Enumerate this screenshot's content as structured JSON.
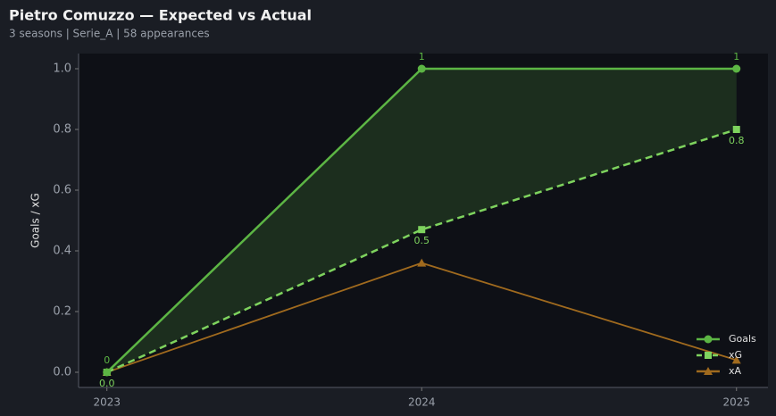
{
  "chart_data": {
    "type": "line",
    "title": "Pietro Comuzzo — Expected vs Actual",
    "subtitle": "3 seasons | Serie_A | 58 appearances",
    "y_label": "Goals / xG",
    "x": [
      2023,
      2024,
      2025
    ],
    "xlim": [
      2022.91,
      2025.1
    ],
    "xticks": [
      2023,
      2024,
      2025
    ],
    "ylim": [
      -0.05,
      1.05
    ],
    "yticks": [
      {
        "value": 0,
        "label": "0.0"
      },
      0.2,
      0.4,
      0.6,
      0.8,
      {
        "value": 1,
        "label": "1.0"
      }
    ],
    "legend": "lower right",
    "fill_between": [
      0,
      1
    ],
    "series": [
      {
        "name": "Goals",
        "color": "#5cb544",
        "marker": "circle",
        "linestyle": "solid",
        "values": [
          0,
          1,
          1
        ],
        "labels": "above"
      },
      {
        "name": "xG",
        "color": "#7ed35e",
        "marker": "square",
        "linestyle": "dashed",
        "values": [
          0,
          0.47,
          0.8
        ],
        "value_labels": [
          "0.0",
          "0.5",
          "0.8"
        ],
        "labels": "below"
      },
      {
        "name": "xA",
        "color": "#a06a1e",
        "marker": "triangle",
        "linestyle": "solid",
        "values": [
          0,
          0.36,
          0.04
        ]
      }
    ]
  }
}
